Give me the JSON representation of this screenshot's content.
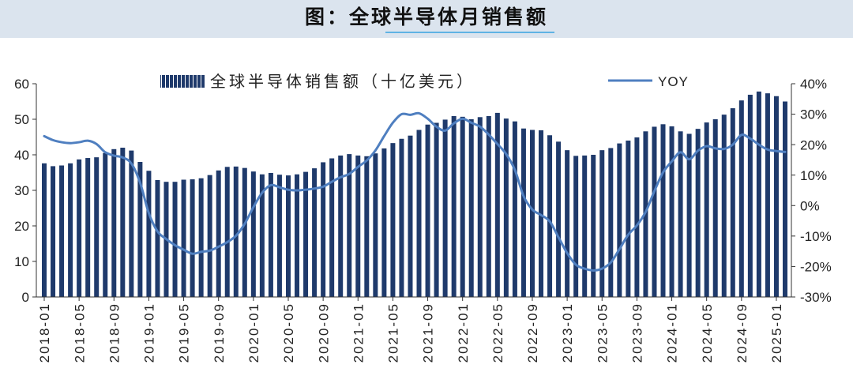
{
  "colors": {
    "banner_bg": "#dbe4ee",
    "title_underline": "#5fb3e4",
    "bar": "#1f3a6b",
    "line": "#4f7fc0",
    "axis": "#333333"
  },
  "chart_data": {
    "type": "bar",
    "title": "图：全球半导体月销售额",
    "categories": [
      "2018-01",
      "2018-02",
      "2018-03",
      "2018-04",
      "2018-05",
      "2018-06",
      "2018-07",
      "2018-08",
      "2018-09",
      "2018-10",
      "2018-11",
      "2018-12",
      "2019-01",
      "2019-02",
      "2019-03",
      "2019-04",
      "2019-05",
      "2019-06",
      "2019-07",
      "2019-08",
      "2019-09",
      "2019-10",
      "2019-11",
      "2019-12",
      "2020-01",
      "2020-02",
      "2020-03",
      "2020-04",
      "2020-05",
      "2020-06",
      "2020-07",
      "2020-08",
      "2020-09",
      "2020-10",
      "2020-11",
      "2020-12",
      "2021-01",
      "2021-02",
      "2021-03",
      "2021-04",
      "2021-05",
      "2021-06",
      "2021-07",
      "2021-08",
      "2021-09",
      "2021-10",
      "2021-11",
      "2021-12",
      "2022-01",
      "2022-02",
      "2022-03",
      "2022-04",
      "2022-05",
      "2022-06",
      "2022-07",
      "2022-08",
      "2022-09",
      "2022-10",
      "2022-11",
      "2022-12",
      "2023-01",
      "2023-02",
      "2023-03",
      "2023-04",
      "2023-05",
      "2023-06",
      "2023-07",
      "2023-08",
      "2023-09",
      "2023-10",
      "2023-11",
      "2023-12",
      "2024-01",
      "2024-02",
      "2024-03",
      "2024-04",
      "2024-05",
      "2024-06",
      "2024-07",
      "2024-08",
      "2024-09",
      "2024-10",
      "2024-11",
      "2024-12",
      "2025-01",
      "2025-02"
    ],
    "x_tick_labels": [
      "2018-01",
      "2018-05",
      "2018-09",
      "2019-01",
      "2019-05",
      "2019-09",
      "2020-01",
      "2020-05",
      "2020-09",
      "2021-01",
      "2021-05",
      "2021-09",
      "2022-01",
      "2022-05",
      "2022-09",
      "2023-01",
      "2023-05",
      "2023-09",
      "2024-01",
      "2024-05",
      "2024-09",
      "2025-01"
    ],
    "y_left": {
      "range": [
        0,
        60
      ],
      "ticks": [
        0,
        10,
        20,
        30,
        40,
        50,
        60
      ]
    },
    "y_right": {
      "range": [
        -30,
        40
      ],
      "ticks": [
        -30,
        -20,
        -10,
        0,
        10,
        20,
        30,
        40
      ],
      "unit": "%"
    },
    "series": [
      {
        "name": "全球半导体销售额（十亿美元）",
        "type": "bar",
        "axis": "left",
        "values": [
          37.6,
          36.8,
          37.0,
          37.6,
          38.7,
          39.1,
          39.3,
          40.5,
          41.6,
          42.0,
          41.2,
          38.0,
          35.5,
          32.9,
          32.4,
          32.4,
          33.0,
          33.1,
          33.4,
          34.3,
          35.6,
          36.6,
          36.7,
          36.3,
          35.3,
          34.5,
          34.9,
          34.4,
          34.2,
          34.5,
          35.2,
          36.2,
          37.9,
          39.0,
          39.8,
          40.2,
          39.8,
          39.6,
          40.4,
          41.8,
          43.3,
          44.5,
          45.4,
          47.0,
          48.5,
          49.0,
          49.9,
          50.9,
          50.7,
          50.0,
          50.6,
          50.9,
          51.8,
          50.2,
          49.4,
          47.4,
          47.0,
          46.9,
          45.5,
          43.7,
          41.3,
          39.7,
          39.8,
          40.0,
          41.3,
          41.9,
          43.2,
          44.0,
          44.9,
          46.6,
          47.9,
          48.6,
          48.0,
          46.6,
          45.9,
          47.3,
          49.1,
          50.0,
          51.3,
          53.1,
          55.3,
          56.9,
          57.8,
          57.3,
          56.5,
          55.0
        ]
      },
      {
        "name": "YOY",
        "type": "line",
        "axis": "right",
        "values": [
          22.8,
          21.5,
          20.8,
          20.5,
          20.8,
          21.3,
          20.2,
          17.5,
          16.4,
          15.8,
          13.8,
          7.5,
          -2.5,
          -8.5,
          -11.0,
          -13.0,
          -14.5,
          -15.8,
          -15.2,
          -14.8,
          -13.5,
          -12.0,
          -9.9,
          -6.0,
          -0.5,
          4.2,
          6.7,
          6.0,
          5.2,
          5.0,
          5.2,
          5.6,
          6.2,
          7.8,
          9.3,
          10.4,
          12.7,
          14.8,
          18.1,
          22.8,
          27.2,
          30.0,
          29.8,
          30.3,
          28.5,
          25.9,
          24.6,
          27.0,
          28.5,
          27.2,
          25.9,
          23.3,
          20.2,
          16.9,
          11.7,
          3.1,
          -1.3,
          -3.1,
          -5.2,
          -10.4,
          -15.6,
          -19.4,
          -20.7,
          -21.3,
          -20.7,
          -18.7,
          -14.3,
          -9.6,
          -6.5,
          -2.1,
          4.7,
          10.9,
          14.5,
          17.5,
          15.2,
          18.0,
          19.5,
          18.8,
          18.6,
          20.0,
          23.2,
          22.0,
          20.0,
          18.4,
          17.9,
          17.6
        ]
      }
    ],
    "legend": {
      "position": "top"
    },
    "grid": false
  }
}
